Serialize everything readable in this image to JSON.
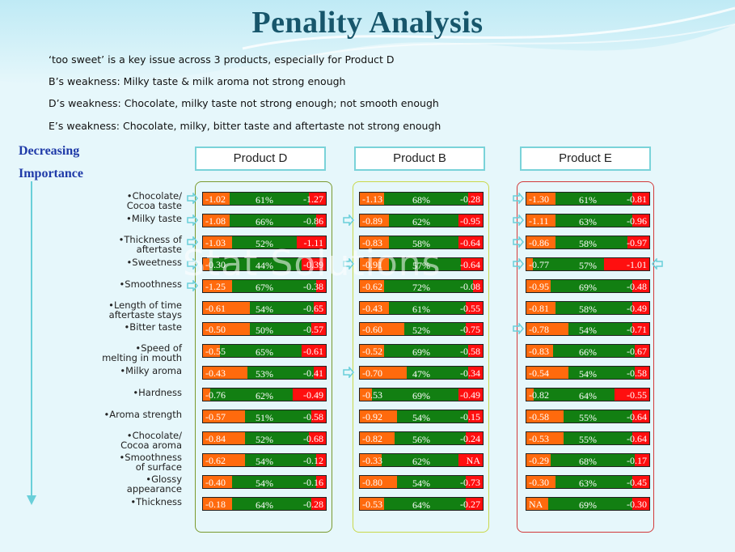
{
  "title": "Penality Analysis",
  "notes": [
    "‘too sweet’ is a key issue across 3 products, especially for Product D",
    "B’s weakness: Milky taste & milk aroma not strong enough",
    "D’s weakness: Chocolate, milky taste not strong enough; not smooth enough",
    "E’s weakness:  Chocolate, milky, bitter taste and aftertaste not strong enough"
  ],
  "importance": {
    "line1": "Decreasing",
    "line2": "Importance"
  },
  "watermark": "Stat Solutions",
  "attributes": [
    [
      "•Chocolate/",
      "Cocoa taste"
    ],
    [
      "•Milky taste"
    ],
    [
      "•Thickness of",
      "aftertaste"
    ],
    [
      "•Sweetness"
    ],
    [
      "•Smoothness"
    ],
    [
      "•Length of time",
      "aftertaste stays"
    ],
    [
      "•Bitter taste"
    ],
    [
      "•Speed of",
      "melting in mouth"
    ],
    [
      "•Milky aroma"
    ],
    [
      "•Hardness"
    ],
    [
      "•Aroma strength"
    ],
    [
      "•Chocolate/",
      "Cocoa aroma"
    ],
    [
      "•Smoothness",
      "of surface"
    ],
    [
      "•Glossy",
      "appearance"
    ],
    [
      "•Thickness"
    ]
  ],
  "colors": {
    "left_penalty": "#ff6a0d",
    "jar": "#127f12",
    "right_penalty": "#ff0f0f",
    "panel_D": "#7a9a2e",
    "panel_B": "#c9d84a",
    "panel_E": "#d23a3a",
    "arrow": "#69cfd9"
  },
  "products": [
    {
      "name": "Product D",
      "rows": [
        {
          "l": "-1.02",
          "jar": "61%",
          "r": "-1.27",
          "lf": 0.22,
          "rf": 0.14,
          "mark": true
        },
        {
          "l": "-1.08",
          "jar": "66%",
          "r": "-0.86",
          "lf": 0.22,
          "rf": 0.08,
          "mark": true
        },
        {
          "l": "-1.03",
          "jar": "52%",
          "r": "-1.11",
          "lf": 0.24,
          "rf": 0.24,
          "mark": true
        },
        {
          "l": "-0.30",
          "jar": "44%",
          "r": "-0.39",
          "lf": 0.05,
          "rf": 0.2,
          "mark": true
        },
        {
          "l": "-1.25",
          "jar": "67%",
          "r": "-0.38",
          "lf": 0.24,
          "rf": 0.08,
          "mark": true
        },
        {
          "l": "-0.61",
          "jar": "54%",
          "r": "-0.65",
          "lf": 0.38,
          "rf": 0.1,
          "mark": false
        },
        {
          "l": "-0.50",
          "jar": "50%",
          "r": "-0.57",
          "lf": 0.38,
          "rf": 0.12,
          "mark": false
        },
        {
          "l": "-0.55",
          "jar": "65%",
          "r": "-0.61",
          "lf": 0.14,
          "rf": 0.2,
          "mark": false
        },
        {
          "l": "-0.43",
          "jar": "53%",
          "r": "-0.41",
          "lf": 0.36,
          "rf": 0.1,
          "mark": false
        },
        {
          "l": "-0.76",
          "jar": "62%",
          "r": "-0.49",
          "lf": 0.06,
          "rf": 0.27,
          "mark": false
        },
        {
          "l": "-0.57",
          "jar": "51%",
          "r": "-0.58",
          "lf": 0.34,
          "rf": 0.12,
          "mark": false
        },
        {
          "l": "-0.84",
          "jar": "52%",
          "r": "-0.68",
          "lf": 0.34,
          "rf": 0.14,
          "mark": false
        },
        {
          "l": "-0.62",
          "jar": "54%",
          "r": "-0.12",
          "lf": 0.34,
          "rf": 0.08,
          "mark": false
        },
        {
          "l": "-0.40",
          "jar": "54%",
          "r": "-0.16",
          "lf": 0.24,
          "rf": 0.08,
          "mark": false
        },
        {
          "l": "-0.18",
          "jar": "64%",
          "r": "-0.28",
          "lf": 0.24,
          "rf": 0.12,
          "mark": false
        }
      ]
    },
    {
      "name": "Product B",
      "rows": [
        {
          "l": "-1.13",
          "jar": "68%",
          "r": "-0.28",
          "lf": 0.2,
          "rf": 0.12,
          "mark": false
        },
        {
          "l": "-0.89",
          "jar": "62%",
          "r": "-0.95",
          "lf": 0.24,
          "rf": 0.2,
          "mark": true
        },
        {
          "l": "-0.83",
          "jar": "58%",
          "r": "-0.64",
          "lf": 0.24,
          "rf": 0.2,
          "mark": false
        },
        {
          "l": "-0.91",
          "jar": "57%",
          "r": "-0.64",
          "lf": 0.24,
          "rf": 0.18,
          "mark": true
        },
        {
          "l": "-0.62",
          "jar": "72%",
          "r": "-0.08",
          "lf": 0.2,
          "rf": 0.08,
          "mark": false
        },
        {
          "l": "-0.43",
          "jar": "61%",
          "r": "-0.55",
          "lf": 0.24,
          "rf": 0.14,
          "mark": false
        },
        {
          "l": "-0.60",
          "jar": "52%",
          "r": "-0.75",
          "lf": 0.36,
          "rf": 0.14,
          "mark": false
        },
        {
          "l": "-0.52",
          "jar": "69%",
          "r": "-0.58",
          "lf": 0.2,
          "rf": 0.12,
          "mark": false
        },
        {
          "l": "-0.70",
          "jar": "47%",
          "r": "-0.34",
          "lf": 0.38,
          "rf": 0.12,
          "mark": true
        },
        {
          "l": "-0.53",
          "jar": "69%",
          "r": "-0.49",
          "lf": 0.1,
          "rf": 0.2,
          "mark": false
        },
        {
          "l": "-0.92",
          "jar": "54%",
          "r": "-0.15",
          "lf": 0.3,
          "rf": 0.12,
          "mark": false
        },
        {
          "l": "-0.82",
          "jar": "56%",
          "r": "-0.24",
          "lf": 0.28,
          "rf": 0.14,
          "mark": false
        },
        {
          "l": "-0.33",
          "jar": "62%",
          "r": "NA",
          "lf": 0.18,
          "rf": 0.2,
          "mark": false
        },
        {
          "l": "-0.80",
          "jar": "54%",
          "r": "-0.73",
          "lf": 0.3,
          "rf": 0.14,
          "mark": false
        },
        {
          "l": "-0.53",
          "jar": "64%",
          "r": "-0.27",
          "lf": 0.2,
          "rf": 0.14,
          "mark": false
        }
      ]
    },
    {
      "name": "Product E",
      "rows": [
        {
          "l": "-1.30",
          "jar": "61%",
          "r": "-0.81",
          "lf": 0.24,
          "rf": 0.14,
          "mark": true
        },
        {
          "l": "-1.11",
          "jar": "63%",
          "r": "-0.96",
          "lf": 0.24,
          "rf": 0.14,
          "mark": true
        },
        {
          "l": "-0.86",
          "jar": "58%",
          "r": "-0.97",
          "lf": 0.24,
          "rf": 0.18,
          "mark": true
        },
        {
          "l": "-0.77",
          "jar": "57%",
          "r": "-1.01",
          "lf": 0.05,
          "rf": 0.37,
          "mark": true
        },
        {
          "l": "-0.95",
          "jar": "69%",
          "r": "-0.48",
          "lf": 0.2,
          "rf": 0.14,
          "mark": false
        },
        {
          "l": "-0.81",
          "jar": "58%",
          "r": "-0.49",
          "lf": 0.24,
          "rf": 0.14,
          "mark": false
        },
        {
          "l": "-0.78",
          "jar": "54%",
          "r": "-0.71",
          "lf": 0.34,
          "rf": 0.14,
          "mark": true
        },
        {
          "l": "-0.83",
          "jar": "66%",
          "r": "-0.67",
          "lf": 0.22,
          "rf": 0.12,
          "mark": false
        },
        {
          "l": "-0.54",
          "jar": "54%",
          "r": "-0.58",
          "lf": 0.34,
          "rf": 0.12,
          "mark": false
        },
        {
          "l": "-0.82",
          "jar": "64%",
          "r": "-0.55",
          "lf": 0.06,
          "rf": 0.28,
          "mark": false
        },
        {
          "l": "-0.58",
          "jar": "55%",
          "r": "-0.64",
          "lf": 0.3,
          "rf": 0.14,
          "mark": false
        },
        {
          "l": "-0.53",
          "jar": "55%",
          "r": "-0.64",
          "lf": 0.3,
          "rf": 0.14,
          "mark": false
        },
        {
          "l": "-0.29",
          "jar": "68%",
          "r": "-0.17",
          "lf": 0.2,
          "rf": 0.12,
          "mark": false
        },
        {
          "l": "-0.30",
          "jar": "63%",
          "r": "-0.45",
          "lf": 0.24,
          "rf": 0.14,
          "mark": false
        },
        {
          "l": "NA",
          "jar": "69%",
          "r": "-0.30",
          "lf": 0.18,
          "rf": 0.14,
          "mark": false
        }
      ]
    }
  ]
}
